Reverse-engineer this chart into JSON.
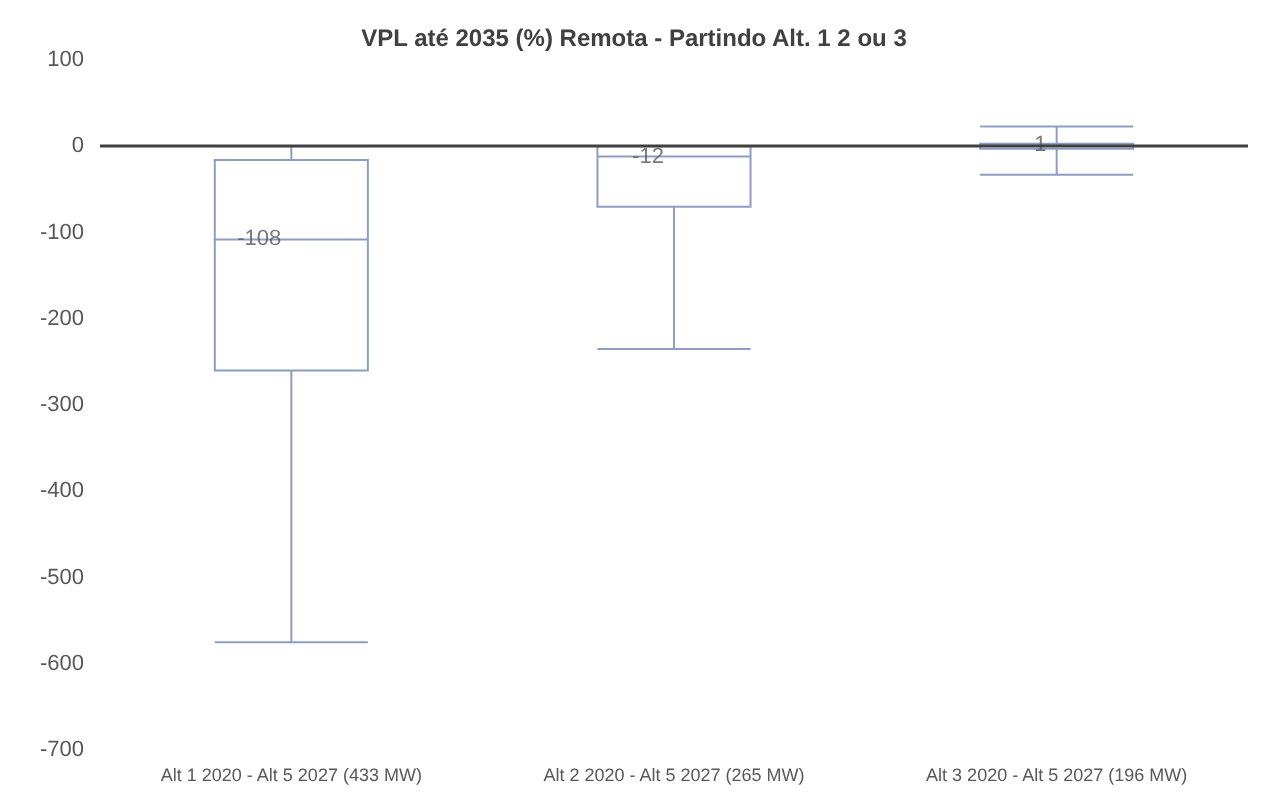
{
  "chart_data": {
    "type": "box",
    "title": "VPL até 2035 (%) Remota - Partindo Alt. 1 2 ou 3",
    "categories": [
      "Alt 1 2020 - Alt 5 2027 (433 MW)",
      "Alt 2 2020 - Alt 5 2027 (265 MW)",
      "Alt 3 2020 - Alt 5 2027 (196 MW)"
    ],
    "boxes": [
      {
        "low": -575,
        "q1": -260,
        "median": -108,
        "q3": -16,
        "high": 0
      },
      {
        "low": -235,
        "q1": -70,
        "median": -12,
        "q3": 0,
        "high": 0
      },
      {
        "low": -33,
        "q1": -3,
        "median": 1,
        "q3": 3,
        "high": 23
      }
    ],
    "color": "#8e9dc4",
    "annotations": [
      {
        "text": "-108",
        "x": "Alt 1 2020 - Alt 5 2027 (433 MW)",
        "y": -108
      },
      {
        "text": "-12",
        "x": "Alt 2 2020 - Alt 5 2027 (265 MW)",
        "y": -12
      },
      {
        "text": "1",
        "x": "Alt 3 2020 - Alt 5 2027 (196 MW)",
        "y": 1
      }
    ],
    "ref_lines": [
      {
        "axis": "y",
        "value": 0,
        "color": "#404040"
      }
    ],
    "ylim": [
      -700,
      100
    ],
    "yticks": [
      -700,
      -600,
      -500,
      -400,
      -300,
      -200,
      -100,
      0,
      100
    ],
    "grid": false
  }
}
